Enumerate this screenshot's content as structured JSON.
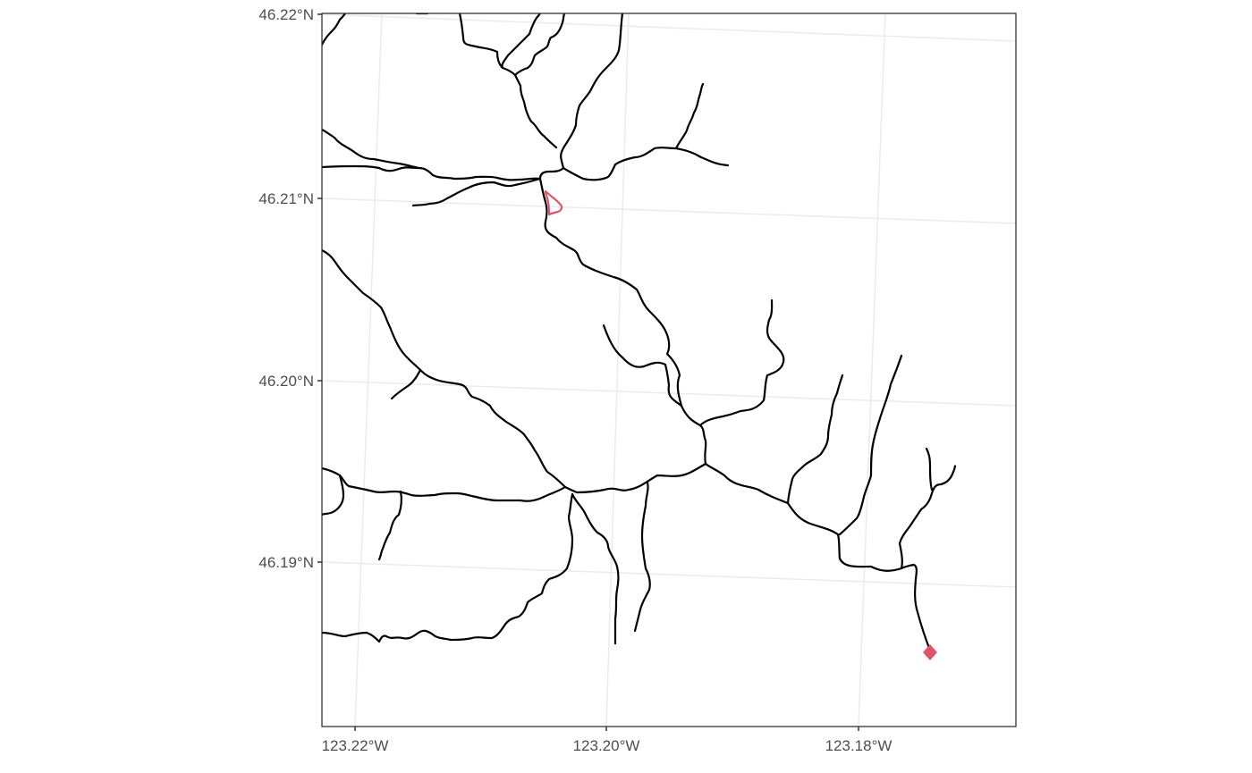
{
  "map": {
    "type": "stream-network-map",
    "x_ticks": [
      {
        "label": "123.22°W",
        "lon": -123.22
      },
      {
        "label": "123.20°W",
        "lon": -123.2
      },
      {
        "label": "123.18°W",
        "lon": -123.18
      }
    ],
    "y_ticks": [
      {
        "label": "46.22°N",
        "lat": 46.22
      },
      {
        "label": "46.21°N",
        "lat": 46.21
      },
      {
        "label": "46.20°N",
        "lat": 46.2
      },
      {
        "label": "46.19°N",
        "lat": 46.19
      }
    ],
    "features": {
      "streams": {
        "color": "#000000",
        "name": "stream-network"
      },
      "waterbody": {
        "color": "#DF536B",
        "name": "upstream-waterbody"
      },
      "outlet": {
        "color": "#DF536B",
        "name": "outlet-point",
        "marker": "diamond"
      }
    },
    "grid": true,
    "theme": "bw"
  }
}
